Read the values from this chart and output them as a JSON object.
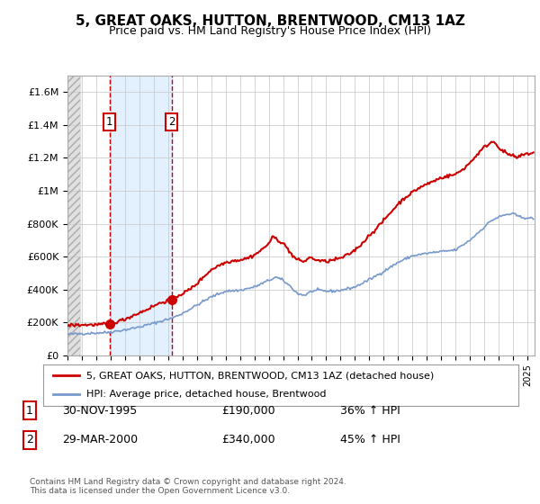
{
  "title": "5, GREAT OAKS, HUTTON, BRENTWOOD, CM13 1AZ",
  "subtitle": "Price paid vs. HM Land Registry's House Price Index (HPI)",
  "ylabel_ticks": [
    0,
    200000,
    400000,
    600000,
    800000,
    1000000,
    1200000,
    1400000,
    1600000
  ],
  "ylabel_labels": [
    "£0",
    "£200K",
    "£400K",
    "£600K",
    "£800K",
    "£1M",
    "£1.2M",
    "£1.4M",
    "£1.6M"
  ],
  "xmin": 1993.0,
  "xmax": 2025.5,
  "ymin": 0,
  "ymax": 1700000,
  "sale1_date": 1995.92,
  "sale1_price": 190000,
  "sale2_date": 2000.25,
  "sale2_price": 340000,
  "red_color": "#cc0000",
  "blue_color": "#7799cc",
  "hatch_color": "#cccccc",
  "shade_color": "#ddeeff",
  "legend_label_red": "5, GREAT OAKS, HUTTON, BRENTWOOD, CM13 1AZ (detached house)",
  "legend_label_blue": "HPI: Average price, detached house, Brentwood",
  "table_rows": [
    [
      "1",
      "30-NOV-1995",
      "£190,000",
      "36% ↑ HPI"
    ],
    [
      "2",
      "29-MAR-2000",
      "£340,000",
      "45% ↑ HPI"
    ]
  ],
  "footer": "Contains HM Land Registry data © Crown copyright and database right 2024.\nThis data is licensed under the Open Government Licence v3.0.",
  "background_color": "#ffffff",
  "grid_color": "#cccccc",
  "hpi_anchors": {
    "1993.0": 128000,
    "1994.0": 132000,
    "1995.0": 136000,
    "1995.92": 140000,
    "1996.0": 142000,
    "1997.0": 155000,
    "1998.0": 172000,
    "1999.0": 195000,
    "2000.0": 220000,
    "2000.25": 225000,
    "2001.0": 255000,
    "2002.0": 305000,
    "2003.0": 355000,
    "2004.0": 390000,
    "2005.0": 395000,
    "2006.0": 415000,
    "2007.0": 455000,
    "2007.5": 475000,
    "2008.0": 455000,
    "2008.5": 420000,
    "2009.0": 375000,
    "2009.5": 365000,
    "2010.0": 390000,
    "2010.5": 395000,
    "2011.0": 390000,
    "2011.5": 390000,
    "2012.0": 395000,
    "2013.0": 415000,
    "2014.0": 460000,
    "2015.0": 510000,
    "2016.0": 565000,
    "2017.0": 605000,
    "2018.0": 620000,
    "2019.0": 630000,
    "2020.0": 640000,
    "2021.0": 700000,
    "2022.0": 780000,
    "2022.5": 820000,
    "2023.0": 840000,
    "2023.5": 855000,
    "2024.0": 860000,
    "2024.5": 840000,
    "2025.0": 835000,
    "2025.4": 830000
  },
  "red_anchors": {
    "1993.0": 182000,
    "1994.0": 185000,
    "1995.0": 186000,
    "1995.92": 190000,
    "1996.0": 195000,
    "1996.5": 205000,
    "1997.0": 220000,
    "1997.5": 240000,
    "1998.0": 258000,
    "1998.5": 278000,
    "1999.0": 300000,
    "1999.5": 320000,
    "2000.25": 340000,
    "2000.5": 355000,
    "2001.0": 375000,
    "2001.5": 400000,
    "2002.0": 435000,
    "2002.5": 480000,
    "2003.0": 520000,
    "2003.5": 545000,
    "2004.0": 565000,
    "2004.5": 575000,
    "2005.0": 580000,
    "2005.5": 590000,
    "2006.0": 610000,
    "2006.5": 640000,
    "2007.0": 680000,
    "2007.3": 720000,
    "2007.5": 710000,
    "2008.0": 680000,
    "2008.3": 650000,
    "2008.7": 600000,
    "2009.0": 580000,
    "2009.5": 570000,
    "2009.8": 595000,
    "2010.0": 590000,
    "2010.5": 575000,
    "2011.0": 570000,
    "2011.5": 580000,
    "2012.0": 590000,
    "2012.5": 610000,
    "2013.0": 640000,
    "2013.5": 680000,
    "2014.0": 730000,
    "2014.5": 770000,
    "2015.0": 820000,
    "2015.5": 870000,
    "2016.0": 920000,
    "2016.5": 960000,
    "2017.0": 990000,
    "2017.5": 1020000,
    "2018.0": 1040000,
    "2018.5": 1060000,
    "2019.0": 1080000,
    "2019.5": 1090000,
    "2020.0": 1100000,
    "2020.5": 1130000,
    "2021.0": 1170000,
    "2021.5": 1220000,
    "2022.0": 1265000,
    "2022.3": 1285000,
    "2022.6": 1300000,
    "2022.8": 1290000,
    "2023.0": 1265000,
    "2023.3": 1240000,
    "2023.6": 1225000,
    "2023.9": 1215000,
    "2024.0": 1210000,
    "2024.3": 1200000,
    "2024.6": 1215000,
    "2025.0": 1225000,
    "2025.4": 1230000
  }
}
